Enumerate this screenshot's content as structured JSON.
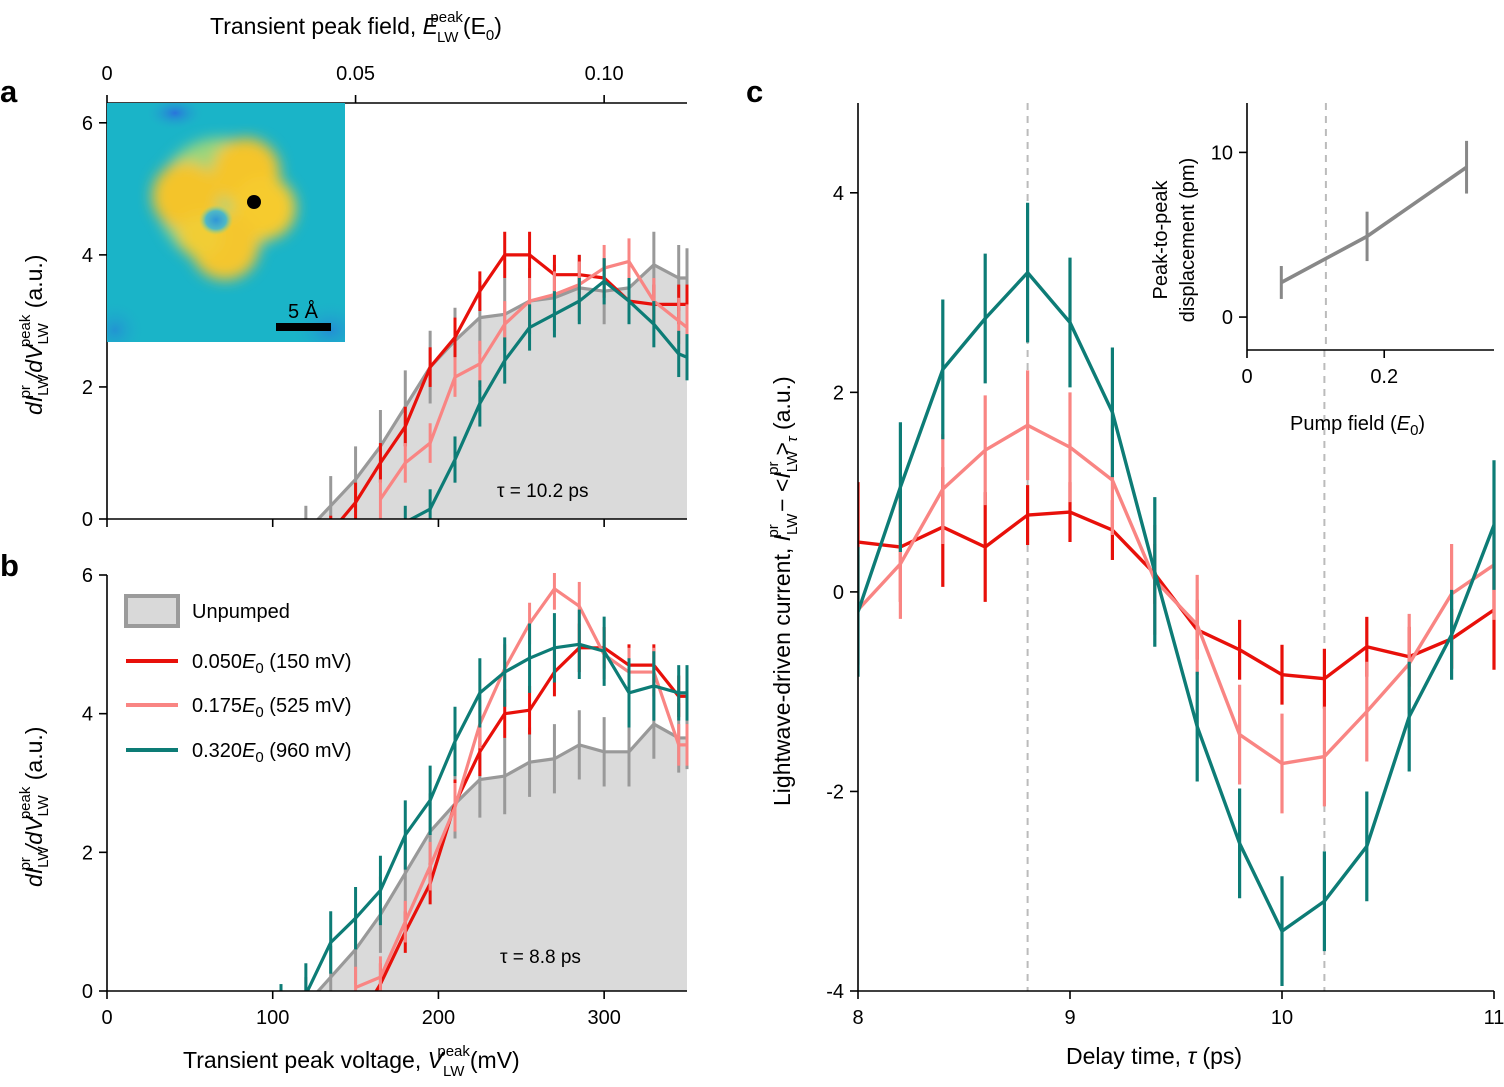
{
  "colors": {
    "unpumped": "#999999",
    "unpumped_fill": "#dadada",
    "s150": "#e8100a",
    "s525": "#f98583",
    "s960": "#0d7c76",
    "dashed": "#bbbbbb",
    "inset": "#888888"
  },
  "labels": {
    "top_axis_main": "Transient peak field, ",
    "E": "E",
    "LW": "LW",
    "peak": "peak",
    "E0paren": "(E",
    "zero": "0",
    "close": ")",
    "bottom_axis_main": "Transient peak voltage, ",
    "V": "V",
    "mV": "(mV)",
    "dI": "dI",
    "dV": "/dV",
    "pr": "pr",
    "au": " (a.u.)",
    "c_ylabel_main": "Lightwave-driven current, ",
    "I": "I",
    "minus_lt": " − <",
    "gt": ">",
    "tau_sym": "τ",
    "au2": " (a.u.)",
    "c_xlabel": "Delay time, ",
    "ps": " (ps)",
    "inset_x": "Pump field (",
    "inset_y1": "Peak-to-peak",
    "inset_y2": "displacement (pm)",
    "scalebar": "5 Å"
  },
  "panels": {
    "a": "a",
    "b": "b",
    "c": "c"
  },
  "legend": {
    "unpumped": "Unpumped",
    "s150_pre": "0.050",
    "s150_post": " (150 mV)",
    "s525_pre": "0.175",
    "s525_post": " (525 mV)",
    "s960_pre": "0.320",
    "s960_post": " (960 mV)"
  },
  "tau_notes": {
    "a": "τ = 10.2 ps",
    "b": "τ = 8.8 ps"
  },
  "chart_data": [
    {
      "id": "a",
      "type": "line",
      "x_label": "Transient peak voltage (mV)",
      "top_axis": {
        "label": "Transient peak field (E0)",
        "ticks": [
          0,
          0.05,
          0.1
        ],
        "tick_labels": [
          "0",
          "0.05",
          "0.10"
        ],
        "scale_mV_per_unit": 3000
      },
      "x_ticks": [
        0,
        100,
        200,
        300
      ],
      "xlim": [
        0,
        350
      ],
      "y_ticks": [
        0,
        2,
        4,
        6
      ],
      "ylim": [
        0,
        6.3
      ],
      "y_label": "dI_LW^pr/dV_LW^peak (a.u.)",
      "annotation": "tau = 10.2 ps",
      "series": [
        {
          "name": "Unpumped",
          "key": "unpumped",
          "fill": true,
          "x": [
            105,
            120,
            135,
            150,
            165,
            180,
            195,
            210,
            225,
            240,
            255,
            270,
            285,
            300,
            315,
            330,
            345,
            350
          ],
          "y": [
            -0.3,
            -0.2,
            0.2,
            0.6,
            1.1,
            1.7,
            2.3,
            2.7,
            3.05,
            3.1,
            3.3,
            3.35,
            3.5,
            3.45,
            3.5,
            3.85,
            3.65,
            3.65
          ],
          "err": [
            0.15,
            0.4,
            0.45,
            0.5,
            0.55,
            0.55,
            0.55,
            0.5,
            0.55,
            0.55,
            0.5,
            0.5,
            0.5,
            0.5,
            0.5,
            0.5,
            0.5,
            0.45
          ]
        },
        {
          "name": "0.050 E0 (150 mV)",
          "key": "s150",
          "x": [
            135,
            150,
            165,
            180,
            195,
            210,
            225,
            240,
            255,
            270,
            285,
            300,
            315,
            330,
            345,
            350
          ],
          "y": [
            -0.2,
            0.25,
            0.85,
            1.4,
            2.3,
            2.75,
            3.45,
            4.0,
            4.0,
            3.7,
            3.7,
            3.65,
            3.3,
            3.25,
            3.25,
            3.25
          ],
          "err": [
            0.25,
            0.3,
            0.3,
            0.3,
            0.3,
            0.3,
            0.3,
            0.35,
            0.35,
            0.3,
            0.3,
            0.3,
            0.3,
            0.3,
            0.3,
            0.3
          ]
        },
        {
          "name": "0.175 E0 (525 mV)",
          "key": "s525",
          "x": [
            165,
            180,
            195,
            210,
            225,
            240,
            255,
            270,
            285,
            300,
            315,
            330,
            345,
            350
          ],
          "y": [
            0.3,
            0.85,
            1.15,
            2.15,
            2.35,
            2.95,
            3.3,
            3.4,
            3.55,
            3.8,
            3.9,
            3.3,
            3.0,
            2.9
          ],
          "err": [
            0.3,
            0.3,
            0.3,
            0.3,
            0.35,
            0.35,
            0.35,
            0.35,
            0.35,
            0.35,
            0.35,
            0.35,
            0.35,
            0.35
          ]
        },
        {
          "name": "0.320 E0 (960 mV)",
          "key": "s960",
          "x": [
            180,
            195,
            210,
            225,
            240,
            255,
            270,
            285,
            300,
            315,
            330,
            345,
            350
          ],
          "y": [
            -0.05,
            0.15,
            0.9,
            1.75,
            2.4,
            2.9,
            3.1,
            3.3,
            3.6,
            3.3,
            2.95,
            2.5,
            2.45
          ],
          "err": [
            0.25,
            0.3,
            0.35,
            0.35,
            0.35,
            0.35,
            0.35,
            0.35,
            0.35,
            0.35,
            0.35,
            0.35,
            0.35
          ]
        }
      ]
    },
    {
      "id": "b",
      "type": "line",
      "x_label": "Transient peak voltage (mV)",
      "x_ticks": [
        0,
        100,
        200,
        300
      ],
      "xlim": [
        0,
        350
      ],
      "y_ticks": [
        0,
        2,
        4,
        6
      ],
      "ylim": [
        0,
        6.0
      ],
      "y_label": "dI_LW^pr/dV_LW^peak (a.u.)",
      "annotation": "tau = 8.8 ps",
      "series": [
        {
          "name": "Unpumped",
          "key": "unpumped",
          "fill": true,
          "x": [
            105,
            120,
            135,
            150,
            165,
            180,
            195,
            210,
            225,
            240,
            255,
            270,
            285,
            300,
            315,
            330,
            345,
            350
          ],
          "y": [
            -0.3,
            -0.2,
            0.2,
            0.6,
            1.1,
            1.7,
            2.3,
            2.7,
            3.05,
            3.1,
            3.3,
            3.35,
            3.55,
            3.45,
            3.45,
            3.85,
            3.65,
            3.65
          ],
          "err": [
            0.15,
            0.4,
            0.45,
            0.5,
            0.55,
            0.55,
            0.55,
            0.5,
            0.55,
            0.55,
            0.5,
            0.5,
            0.5,
            0.5,
            0.5,
            0.5,
            0.5,
            0.45
          ]
        },
        {
          "name": "0.050 E0 (150 mV)",
          "key": "s150",
          "x": [
            150,
            165,
            180,
            195,
            210,
            225,
            240,
            255,
            270,
            285,
            300,
            315,
            330,
            345,
            350
          ],
          "y": [
            -0.5,
            0.1,
            0.85,
            1.55,
            2.7,
            3.45,
            4.0,
            4.05,
            4.6,
            4.95,
            4.95,
            4.7,
            4.7,
            4.25,
            4.25
          ],
          "err": [
            0.3,
            0.3,
            0.3,
            0.3,
            0.35,
            0.35,
            0.35,
            0.35,
            0.35,
            0.35,
            0.3,
            0.3,
            0.3,
            0.3,
            0.3
          ]
        },
        {
          "name": "0.175 E0 (525 mV)",
          "key": "s525",
          "x": [
            150,
            165,
            180,
            195,
            210,
            225,
            240,
            255,
            270,
            285,
            300,
            315,
            330,
            345,
            350
          ],
          "y": [
            0.05,
            0.2,
            1.0,
            1.8,
            2.65,
            3.85,
            4.65,
            5.3,
            5.8,
            5.55,
            4.85,
            4.6,
            4.6,
            3.55,
            3.55
          ],
          "err": [
            0.3,
            0.3,
            0.3,
            0.35,
            0.35,
            0.35,
            0.35,
            0.3,
            0.3,
            0.35,
            0.35,
            0.35,
            0.35,
            0.3,
            0.3
          ]
        },
        {
          "name": "0.320 E0 (960 mV)",
          "key": "s960",
          "x": [
            105,
            120,
            135,
            150,
            165,
            180,
            195,
            210,
            225,
            240,
            255,
            270,
            285,
            300,
            315,
            330,
            345,
            350
          ],
          "y": [
            -0.3,
            -0.05,
            0.7,
            1.05,
            1.45,
            2.25,
            2.75,
            3.6,
            4.3,
            4.6,
            4.8,
            4.95,
            5.0,
            4.9,
            4.3,
            4.4,
            4.3,
            4.3
          ],
          "err": [
            0.4,
            0.45,
            0.45,
            0.45,
            0.5,
            0.5,
            0.5,
            0.5,
            0.5,
            0.5,
            0.5,
            0.5,
            0.5,
            0.5,
            0.5,
            0.5,
            0.4,
            0.4
          ]
        }
      ]
    },
    {
      "id": "c",
      "type": "line",
      "x_label": "Delay time, tau (ps)",
      "y_label": "Lightwave-driven current, I_LW^pr - <I_LW^pr>_tau (a.u.)",
      "x_ticks": [
        8,
        9,
        10,
        11
      ],
      "xlim": [
        8,
        11
      ],
      "y_ticks": [
        -4,
        -2,
        0,
        2,
        4
      ],
      "ylim": [
        -4,
        4.9
      ],
      "dashed_lines_x": [
        8.8,
        10.2
      ],
      "series": [
        {
          "name": "0.050 E0 (150 mV)",
          "key": "s150",
          "x": [
            8.0,
            8.2,
            8.4,
            8.6,
            8.8,
            9.0,
            9.2,
            9.4,
            9.6,
            9.8,
            10.0,
            10.2,
            10.4,
            10.6,
            10.8,
            11.0
          ],
          "y": [
            0.5,
            0.45,
            0.65,
            0.45,
            0.77,
            0.8,
            0.62,
            0.18,
            -0.38,
            -0.58,
            -0.83,
            -0.87,
            -0.55,
            -0.65,
            -0.47,
            -0.18
          ],
          "err": [
            0.6,
            0.55,
            0.6,
            0.55,
            0.3,
            0.3,
            0.3,
            0.3,
            0.3,
            0.3,
            0.3,
            0.3,
            0.3,
            0.3,
            0.3,
            0.6
          ]
        },
        {
          "name": "0.175 E0 (525 mV)",
          "key": "s525",
          "x": [
            8.0,
            8.2,
            8.4,
            8.6,
            8.8,
            9.0,
            9.2,
            9.4,
            9.6,
            9.8,
            10.0,
            10.2,
            10.4,
            10.6,
            10.8,
            11.0
          ],
          "y": [
            -0.18,
            0.28,
            1.03,
            1.42,
            1.67,
            1.45,
            1.12,
            0.12,
            -0.33,
            -1.43,
            -1.72,
            -1.65,
            -1.2,
            -0.72,
            -0.02,
            0.27
          ],
          "err": [
            0.55,
            0.55,
            0.55,
            0.55,
            0.55,
            0.55,
            0.55,
            0.55,
            0.5,
            0.5,
            0.5,
            0.5,
            0.5,
            0.5,
            0.5,
            0.55
          ]
        },
        {
          "name": "0.320 E0 (960 mV)",
          "key": "s960",
          "x": [
            8.0,
            8.2,
            8.4,
            8.6,
            8.8,
            9.0,
            9.2,
            9.4,
            9.6,
            9.8,
            10.0,
            10.2,
            10.4,
            10.6,
            10.8,
            11.0
          ],
          "y": [
            -0.2,
            1.05,
            2.23,
            2.74,
            3.2,
            2.7,
            1.8,
            0.2,
            -1.35,
            -2.52,
            -3.4,
            -3.1,
            -2.55,
            -1.25,
            -0.43,
            0.67
          ],
          "err": [
            0.65,
            0.65,
            0.7,
            0.65,
            0.7,
            0.65,
            0.65,
            0.75,
            0.55,
            0.55,
            0.55,
            0.5,
            0.55,
            0.55,
            0.45,
            0.65
          ]
        }
      ]
    },
    {
      "id": "c-inset",
      "type": "line",
      "x_label": "Pump field (E0)",
      "y_label": "Peak-to-peak displacement (pm)",
      "x_ticks": [
        0,
        0.2
      ],
      "xlim": [
        0,
        0.36
      ],
      "y_ticks": [
        0,
        10
      ],
      "ylim": [
        -2,
        13
      ],
      "dashed_lines_x": [
        0.115
      ],
      "series": [
        {
          "name": "displacement",
          "key": "inset",
          "x": [
            0.05,
            0.175,
            0.32
          ],
          "y": [
            2.1,
            4.9,
            9.1
          ],
          "err": [
            1.0,
            1.5,
            1.6
          ]
        }
      ]
    }
  ]
}
